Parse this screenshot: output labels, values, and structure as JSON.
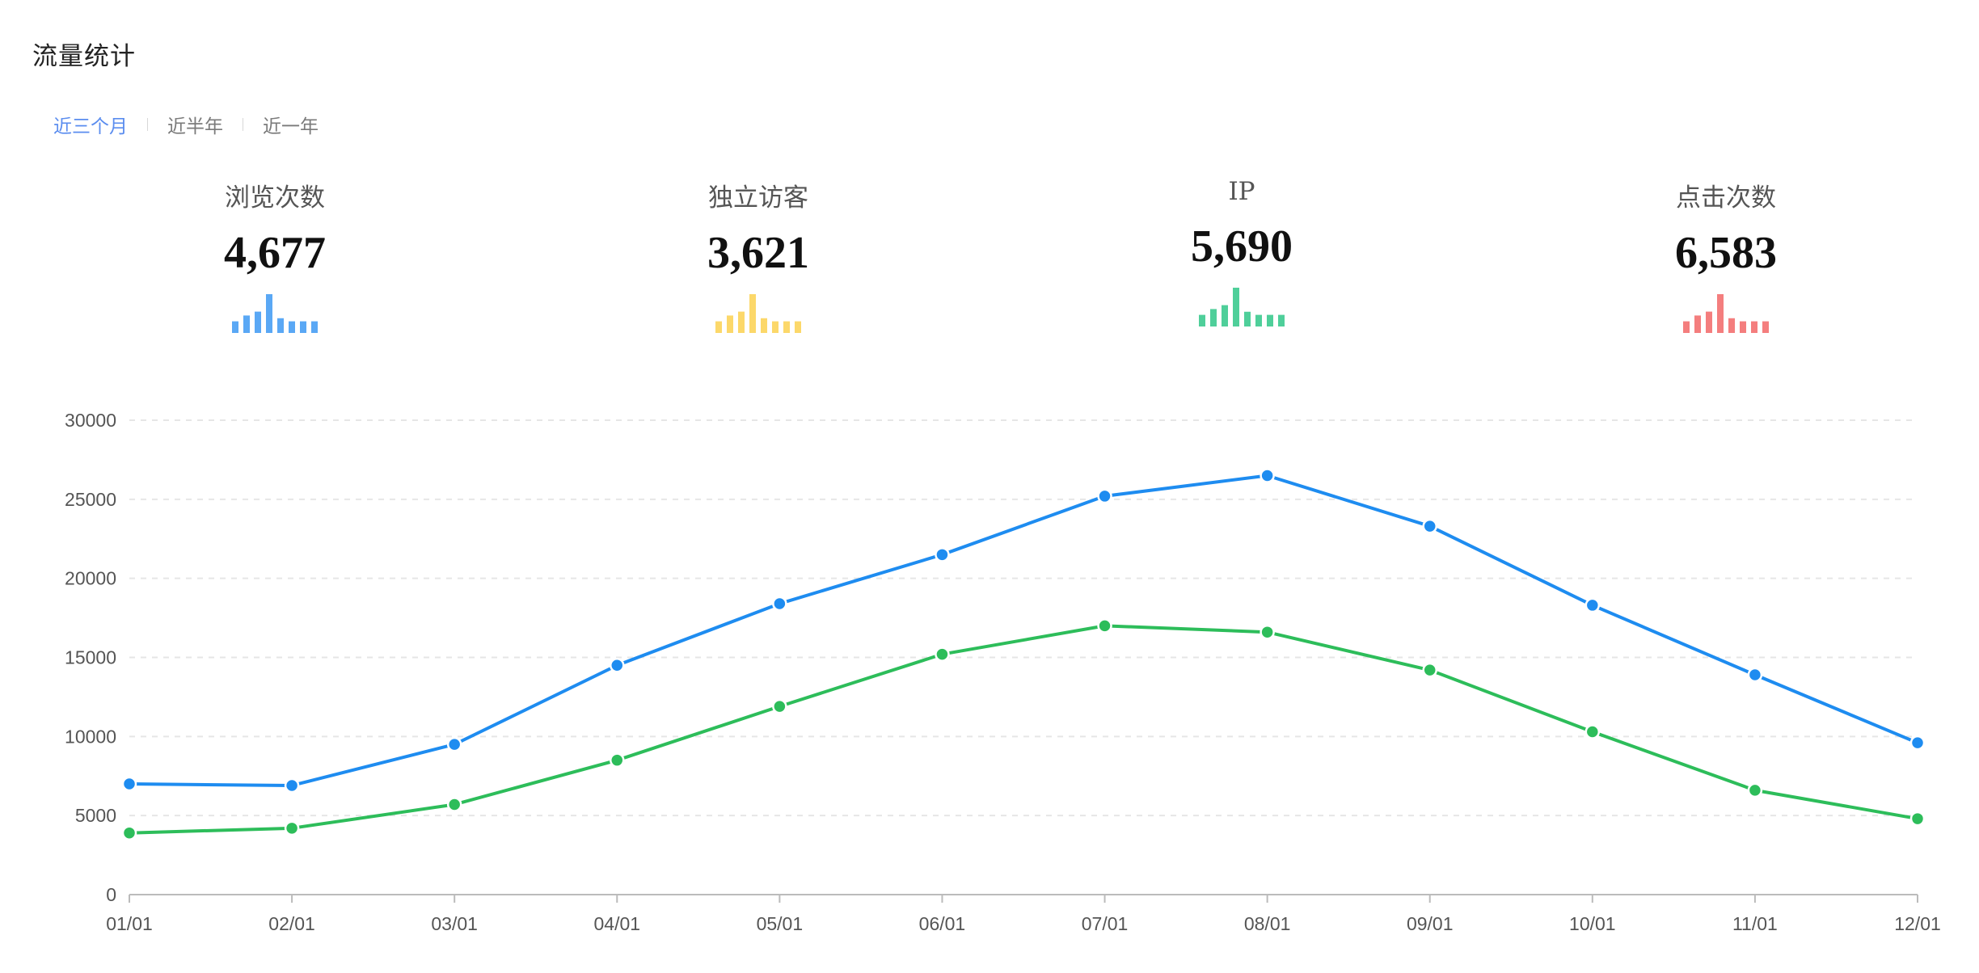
{
  "panel": {
    "title": "流量统计",
    "tabs": [
      {
        "label": "近三个月",
        "active": true
      },
      {
        "label": "近半年",
        "active": false
      },
      {
        "label": "近一年",
        "active": false
      }
    ]
  },
  "stats": [
    {
      "label": "浏览次数",
      "value": "4,677",
      "color": "#5aa8f5"
    },
    {
      "label": "独立访客",
      "value": "3,621",
      "color": "#fcd86a"
    },
    {
      "label": "IP",
      "value": "5,690",
      "color": "#4fcf9a"
    },
    {
      "label": "点击次数",
      "value": "6,583",
      "color": "#f47e7e"
    }
  ],
  "sparkline_levels": [
    0.3,
    0.45,
    0.55,
    1.0,
    0.38,
    0.3,
    0.3,
    0.3
  ],
  "chart_data": {
    "type": "line",
    "categories": [
      "01/01",
      "02/01",
      "03/01",
      "04/01",
      "05/01",
      "06/01",
      "07/01",
      "08/01",
      "09/01",
      "10/01",
      "11/01",
      "12/01"
    ],
    "series": [
      {
        "color": "#1e8cf0",
        "values": [
          7000,
          6900,
          9500,
          14500,
          18400,
          21500,
          25200,
          26500,
          23300,
          18300,
          13900,
          9600
        ]
      },
      {
        "color": "#2dbd5a",
        "values": [
          3900,
          4200,
          5700,
          8500,
          11900,
          15200,
          17000,
          16600,
          14200,
          10300,
          6600,
          4800
        ]
      }
    ],
    "yticks": [
      "0",
      "5000",
      "10000",
      "15000",
      "20000",
      "25000",
      "30000"
    ],
    "ylim": [
      0,
      30000
    ],
    "grid": true,
    "legend": "none"
  }
}
